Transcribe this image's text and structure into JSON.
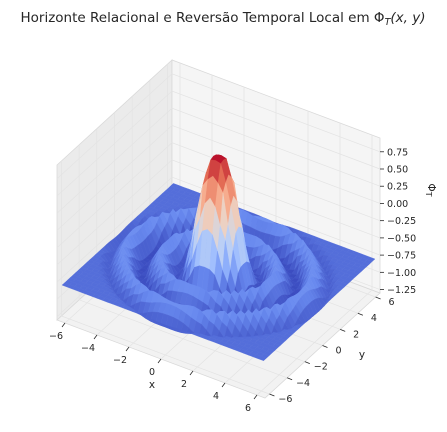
{
  "chart_data": {
    "type": "surface3d",
    "title": "Horizonte Relacional e Reversão Temporal Local em Φ_T(x, y)",
    "title_parts": {
      "prefix": "Horizonte Relacional e Reversão Temporal Local em ",
      "symbol": "Φ",
      "subscript": "T",
      "args": "(x, y)"
    },
    "xlabel": "x",
    "ylabel": "y",
    "zlabel": "Φ_T",
    "zlabel_parts": {
      "symbol": "Φ",
      "subscript": "T"
    },
    "xlim": [
      -6.5,
      6.5
    ],
    "ylim": [
      -6.5,
      6.5
    ],
    "zlim": [
      -1.3,
      0.95
    ],
    "x_ticks": [
      -6,
      -4,
      -2,
      0,
      2,
      4,
      6
    ],
    "y_ticks": [
      -6,
      -4,
      -2,
      0,
      2,
      4,
      6
    ],
    "z_ticks": [
      0.75,
      0.5,
      0.25,
      0.0,
      -0.25,
      -0.5,
      -0.75,
      -1.0,
      -1.25
    ],
    "z_tick_labels": [
      "0.75",
      "0.50",
      "0.25",
      "0.00",
      "−0.25",
      "−0.50",
      "−0.75",
      "−1.00",
      "−1.25"
    ],
    "colormap": "coolwarm",
    "colormap_stops": [
      "#3b4cc0",
      "#6788ee",
      "#9abbff",
      "#c9d7f0",
      "#edd1c2",
      "#f7a889",
      "#e26952",
      "#b40426"
    ],
    "surface_profile": {
      "description_of_radial_shape": "radially symmetric",
      "r": [
        0,
        0.4,
        0.8,
        1.2,
        1.6,
        2.0,
        2.4,
        2.8,
        3.2,
        3.6,
        4.0,
        4.4,
        4.8,
        5.2,
        5.6,
        6.0,
        6.4
      ],
      "z": [
        0.9,
        0.85,
        0.55,
        0.0,
        -0.55,
        -0.9,
        -0.95,
        -0.75,
        -0.6,
        -0.75,
        -0.95,
        -0.95,
        -0.75,
        -0.6,
        -0.75,
        -0.9,
        -0.8
      ]
    },
    "grid": true,
    "view": {
      "elevation_deg": 30,
      "azimuth_deg": -60
    }
  }
}
